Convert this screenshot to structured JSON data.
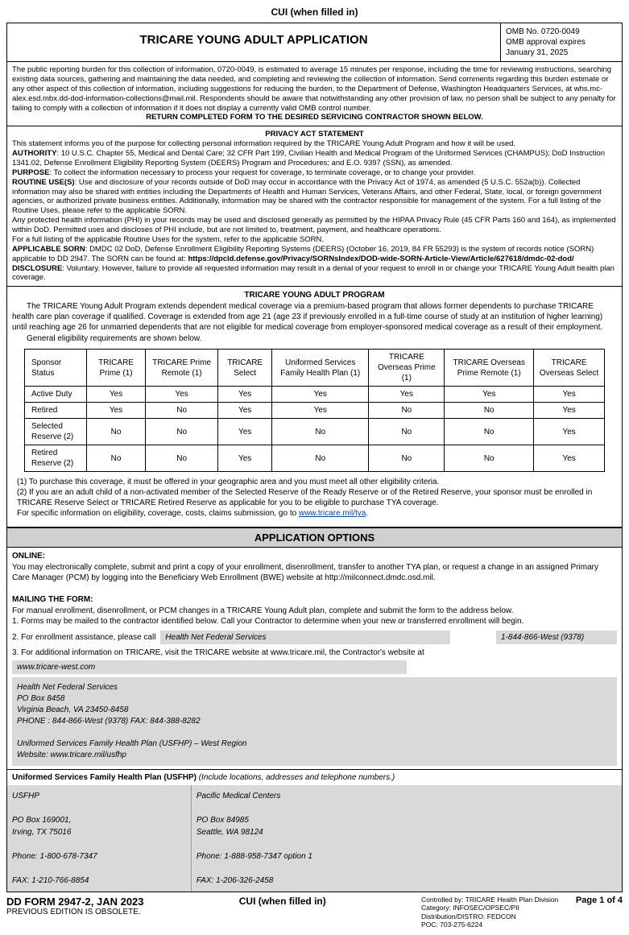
{
  "cui_label": "CUI (when filled in)",
  "header": {
    "title": "TRICARE YOUNG ADULT APPLICATION",
    "omb_no": "OMB No. 0720-0049",
    "omb_exp1": "OMB approval expires",
    "omb_exp2": "January 31, 2025"
  },
  "burden": {
    "text": "The public reporting burden for this collection of information, 0720-0049, is estimated to average 15 minutes per response, including the time for reviewing instructions, searching existing data sources, gathering and maintaining the data needed, and completing and reviewing the collection of information. Send comments regarding this burden estimate or any other aspect of this collection of information, including suggestions for reducing the burden, to the Department of Defense, Washington Headquarters Services, at whs.mc-alex.esd.mbx.dd-dod-information-collections@mail.mil. Respondents should be aware that notwithstanding any other provision of law, no person shall be subject to any penalty for failing to comply with a collection of information if it does not display a currently valid OMB control number.",
    "return": "RETURN COMPLETED FORM TO THE DESIRED SERVICING CONTRACTOR SHOWN BELOW."
  },
  "privacy": {
    "title": "PRIVACY ACT STATEMENT",
    "intro": "This statement informs you of the purpose for collecting personal information required by the TRICARE Young Adult Program and how it will be used.",
    "authority_label": "AUTHORITY",
    "authority": ": 10 U.S.C. Chapter 55, Medical and Dental Care; 32 CFR Part 199, Civilian Health and Medical Program of the Uniformed Services (CHAMPUS); DoD Instruction 1341.02, Defense Enrollment Eligibility Reporting System (DEERS) Program and Procedures; and E.O. 9397 (SSN), as amended.",
    "purpose_label": "PURPOSE",
    "purpose": ": To collect the information necessary to process your request for coverage, to terminate coverage, or to change your provider.",
    "routine_label": "ROUTINE USE(S)",
    "routine": ": Use and disclosure of your records outside of DoD may occur in accordance with the Privacy Act of 1974, as amended (5 U.S.C. 552a(b)). Collected information may also be shared with entities including the Departments of Health and Human Services, Veterans Affairs, and other Federal, State, local, or foreign government agencies, or authorized private business entities. Additionally, information may be shared with the contractor responsible for management of the system. For a full listing of the Routine Uses, please refer to the applicable SORN.",
    "phi": "Any protected health information (PHI) in your records may be used and disclosed generally as permitted by the HIPAA Privacy Rule (45 CFR Parts 160 and 164), as implemented within DoD. Permitted uses and discloses of PHI include, but are not limited to, treatment, payment, and healthcare operations.",
    "phi2": "For a full listing of the applicable Routine Uses for the system, refer to the applicable SORN.",
    "sorn_label": "APPLICABLE SORN",
    "sorn": ": DMDC 02 DoD, Defense Enrollment Eligibility Reporting Systems (DEERS) (October 16, 2019, 84 FR 55293) is the system of records notice (SORN) applicable to DD 2947. The SORN can be found at: ",
    "sorn_url": "https://dpcld.defense.gov/Privacy/SORNsIndex/DOD-wide-SORN-Article-View/Article/627618/dmdc-02-dod/",
    "disclosure_label": "DISCLOSURE",
    "disclosure": ": Voluntary. However, failure to provide all requested information may result in a denial of your request to enroll in or change your TRICARE Young Adult health plan coverage."
  },
  "program": {
    "title": "TRICARE YOUNG ADULT PROGRAM",
    "p1": "The TRICARE Young Adult Program extends dependent medical coverage via a premium-based program that allows former dependents to purchase TRICARE health care plan coverage if qualified. Coverage is extended from age 21 (age 23 if previously enrolled in a full-time course of study at an institution of higher learning) until reaching age 26 for unmarried dependents that are not eligible for medical coverage from employer-sponsored medical coverage as a result of their employment.",
    "p2": "General eligibility requirements are shown below."
  },
  "table": {
    "headers": [
      "Sponsor Status",
      "TRICARE Prime (1)",
      "TRICARE Prime Remote (1)",
      "TRICARE Select",
      "Uniformed Services Family Health Plan (1)",
      "TRICARE Overseas Prime (1)",
      "TRICARE Overseas Prime Remote (1)",
      "TRICARE Overseas Select"
    ],
    "rows": [
      [
        "Active Duty",
        "Yes",
        "Yes",
        "Yes",
        "Yes",
        "Yes",
        "Yes",
        "Yes"
      ],
      [
        "Retired",
        "Yes",
        "No",
        "Yes",
        "Yes",
        "No",
        "No",
        "Yes"
      ],
      [
        "Selected Reserve (2)",
        "No",
        "No",
        "Yes",
        "No",
        "No",
        "No",
        "Yes"
      ],
      [
        "Retired Reserve (2)",
        "No",
        "No",
        "Yes",
        "No",
        "No",
        "No",
        "Yes"
      ]
    ]
  },
  "notes": {
    "n1": "(1) To purchase this coverage, it must be offered in your geographic area and you must meet all other eligibility criteria.",
    "n2": "(2) If you are an adult child of a non-activated member of the Selected Reserve of the Ready Reserve or of the Retired Reserve, your sponsor must be enrolled in TRICARE Reserve Select or TRICARE Retired Reserve as applicable for you to be eligible to purchase TYA coverage.",
    "n3a": "For specific information on eligibility, coverage, costs, claims submission, go to ",
    "n3b": "www.tricare.mil/tya",
    "n3c": "."
  },
  "app_options": {
    "title": "APPLICATION OPTIONS",
    "online_label": "ONLINE:",
    "online": "You may electronically complete, submit and print a copy of your enrollment, disenrollment, transfer to another TYA plan, or request a change in an assigned Primary Care Manager (PCM) by logging into the Beneficiary Web Enrollment (BWE) website at http://milconnect.dmdc.osd.mil.",
    "mail_label": "MAILING THE FORM:",
    "mail": "For manual enrollment, disenrollment, or PCM changes in a TRICARE Young Adult plan, complete and submit the form to the address below.",
    "mail1": "1. Forms may be mailed to the contractor identified below. Call your Contractor to determine when your new or transferred enrollment will begin.",
    "assist_label": "2. For enrollment assistance, please call",
    "assist_name": "Health Net Federal Services",
    "assist_phone": "1-844-866-West (9378)",
    "addl": "3. For additional information on TRICARE, visit the TRICARE website at www.tricare.mil, the Contractor's website at",
    "website": "www.tricare-west.com"
  },
  "contractor": {
    "l1": "Health Net Federal Services",
    "l2": "PO Box 8458",
    "l3": "Virginia Beach, VA 23450-8458",
    "l4": "PHONE : 844-866-West (9378)   FAX: 844-388-8282",
    "l5": "Uniformed Services Family Health Plan (USFHP) – West Region",
    "l6": "Website:  www.tricare.mil/usfhp"
  },
  "usfhp": {
    "hdr_bold": "Uniformed Services Family Health Plan (USFHP)",
    "hdr_rest": "  (Include locations, addresses and telephone numbers.)",
    "col1": {
      "name": "USFHP",
      "addr1": "PO Box 169001,",
      "addr2": "Irving, TX 75016",
      "phone": "Phone: 1-800-678-7347",
      "fax": "FAX: 1-210-766-8854"
    },
    "col2": {
      "name": "Pacific Medical Centers",
      "addr1": "PO Box 84985",
      "addr2": "Seattle, WA 98124",
      "phone": "Phone: 1-888-958-7347 option 1",
      "fax": "FAX: 1-206-326-2458"
    }
  },
  "footer": {
    "form_no": "DD FORM 2947-2, JAN 2023",
    "obsolete": "PREVIOUS EDITION IS OBSOLETE.",
    "cui": "CUI (when filled in)",
    "ctrl1": "Controlled by: TRICARE Health Plan Division",
    "ctrl2": "Category: INFOSEC/OPSEC/PII",
    "ctrl3": "Distribution/DISTRO: FEDCON",
    "ctrl4": "POC: 703-275-6224",
    "page": "Page 1 of 4"
  }
}
